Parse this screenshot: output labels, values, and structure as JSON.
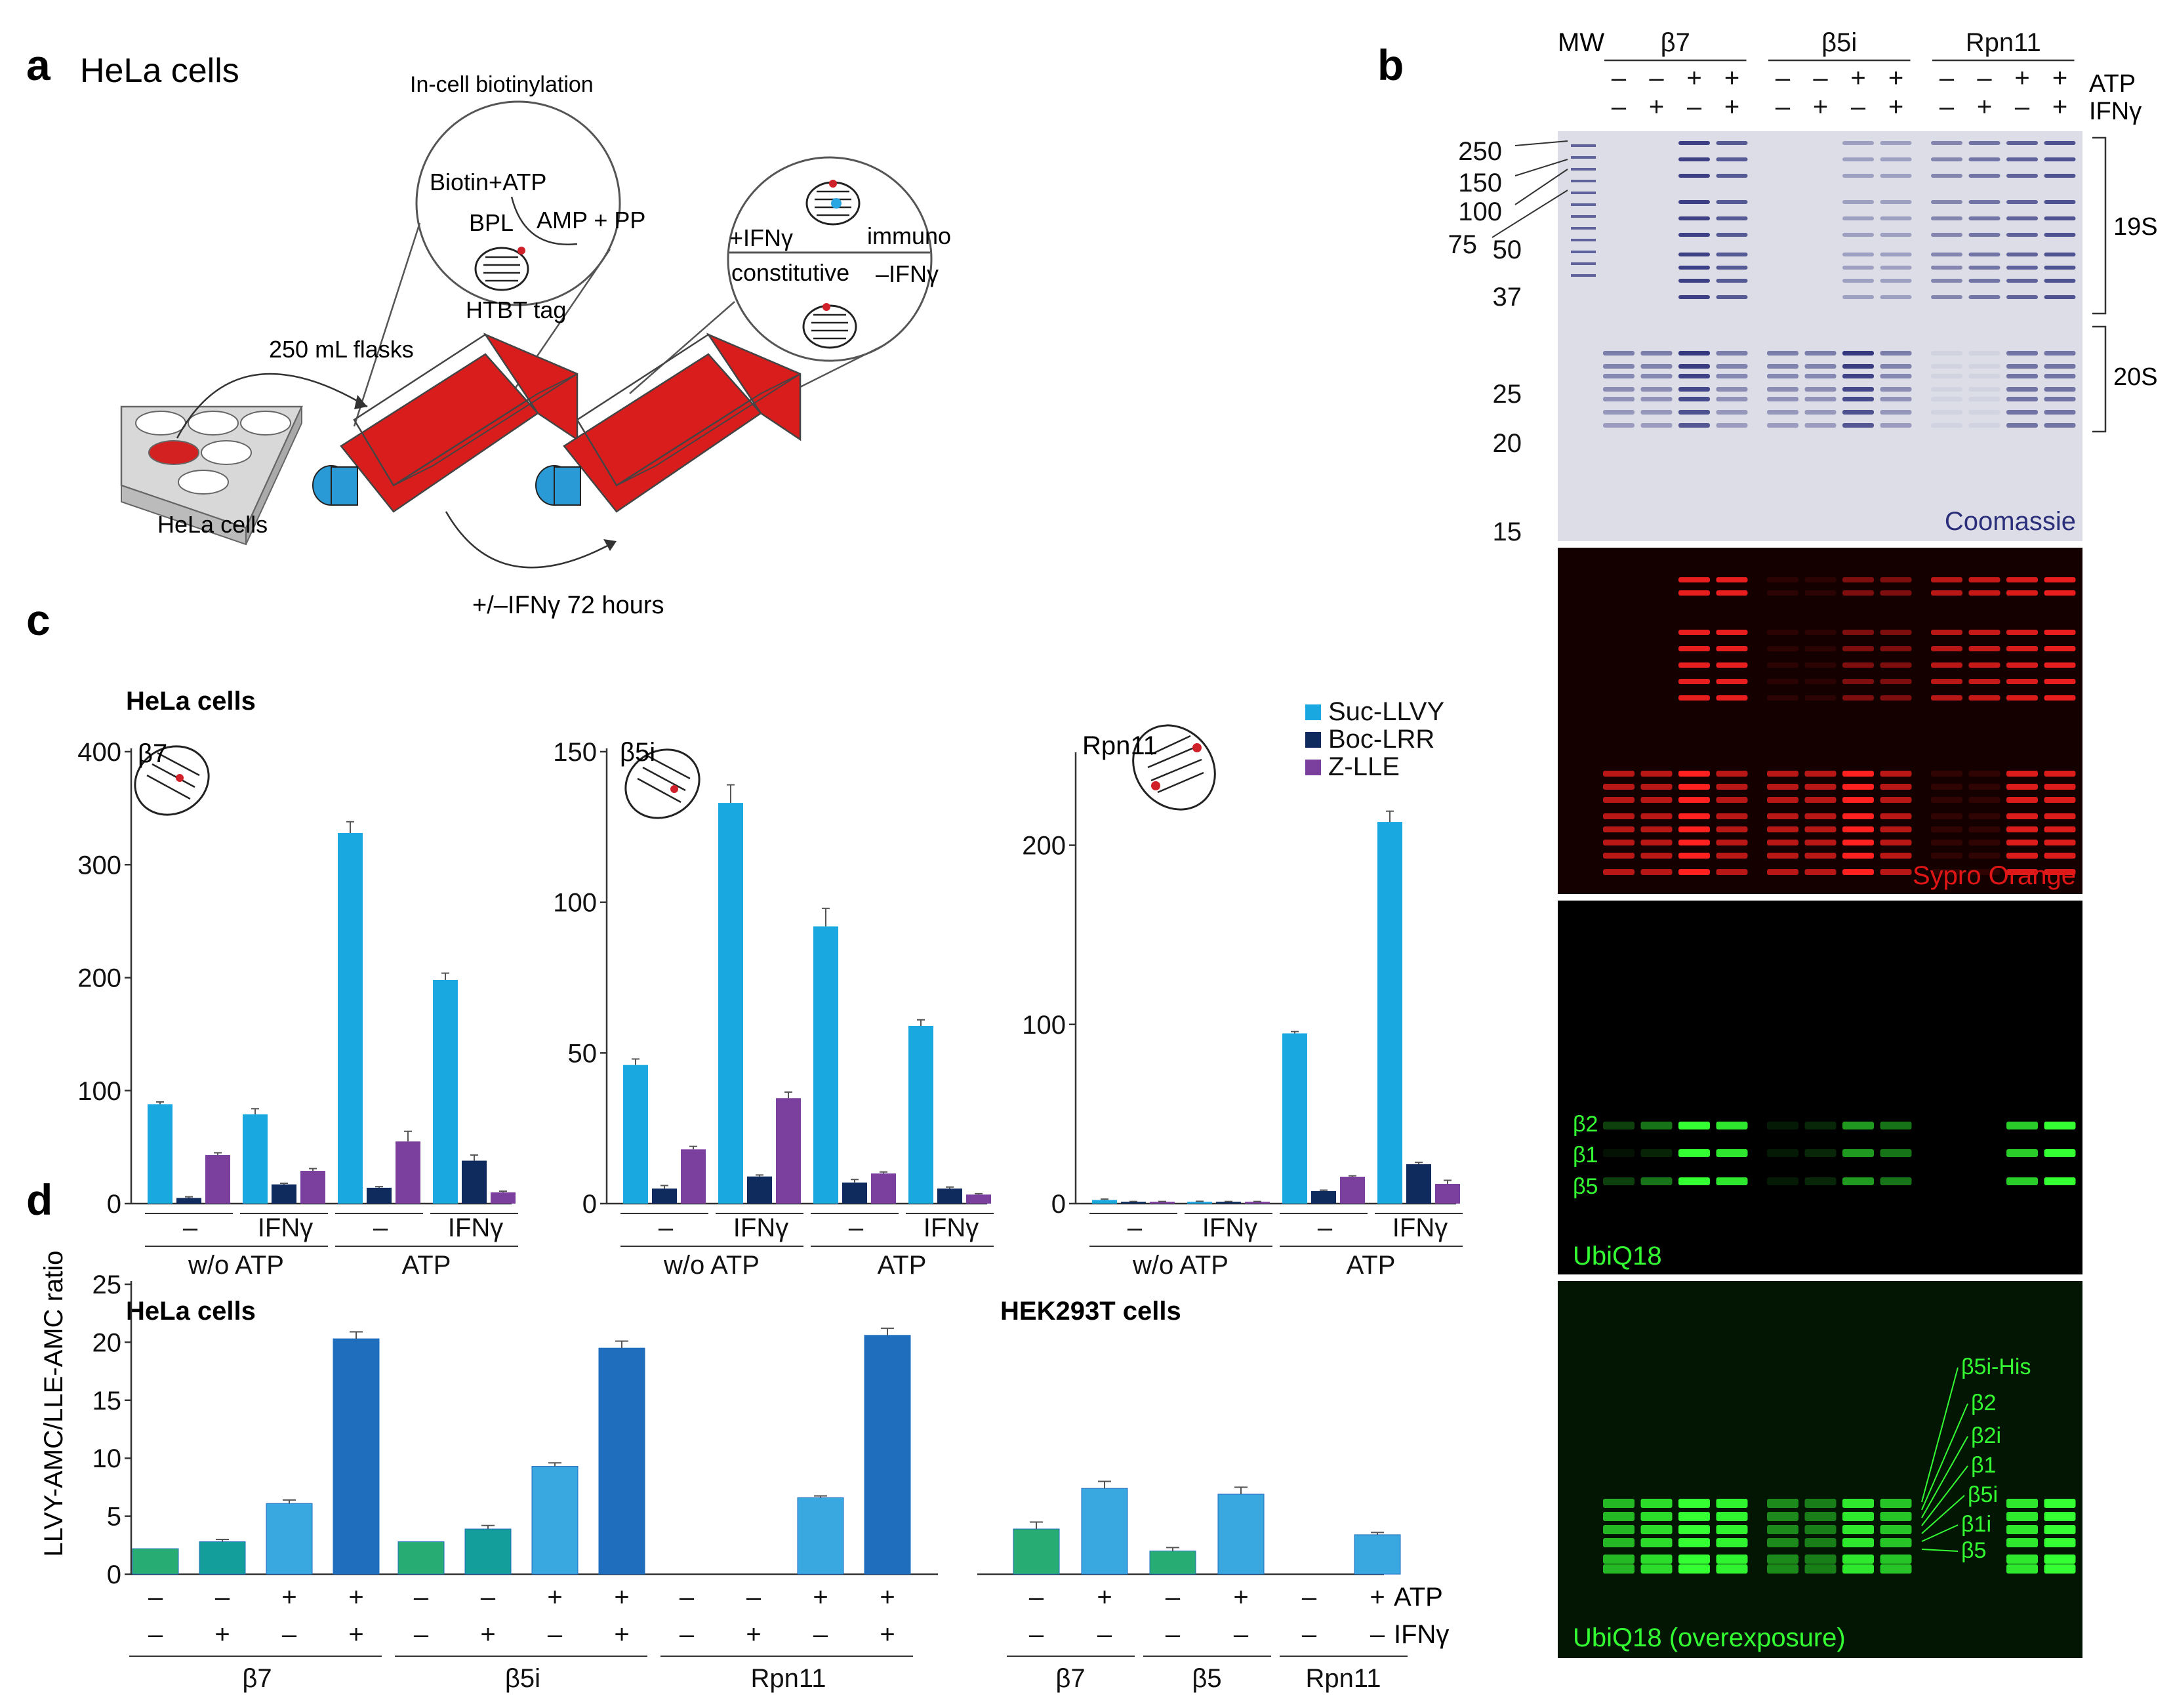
{
  "panel_a": {
    "letter": "a",
    "title": "HeLa cells",
    "labels": {
      "biotinylation": "In-cell biotinylation",
      "biotin_atp": "Biotin+ATP",
      "bpl": "BPL",
      "amp_pp": "AMP + PP",
      "htbt_tag": "HTBT tag",
      "flasks": "250 mL flasks",
      "hela_plate": "HeLa cells",
      "treatment": "+/–IFNγ 72 hours",
      "plus_ifn": "+IFNγ",
      "immuno": "immuno",
      "constitutive": "constitutive",
      "minus_ifn": "–IFNγ"
    }
  },
  "panel_b": {
    "letter": "b",
    "mw_label": "MW",
    "groups": [
      "β7",
      "β5i",
      "Rpn11"
    ],
    "atp_row": [
      "–",
      "–",
      "+",
      "+",
      "–",
      "–",
      "+",
      "+",
      "–",
      "–",
      "+",
      "+"
    ],
    "ifn_row": [
      "–",
      "+",
      "–",
      "+",
      "–",
      "+",
      "–",
      "+",
      "–",
      "+",
      "–",
      "+"
    ],
    "atp_label": "ATP",
    "ifn_label": "IFNγ",
    "mw_markers": [
      "250",
      "150",
      "100",
      "75",
      "50",
      "37",
      "25",
      "20",
      "15"
    ],
    "complex_labels": [
      "19S",
      "20S"
    ],
    "gel_labels": [
      "Coomassie",
      "Sypro Orange",
      "UbiQ18",
      "UbiQ18 (overexposure)"
    ],
    "ubiq_bands": [
      "β2",
      "β1",
      "β5"
    ],
    "overexp_bands": [
      "β5i-His",
      "β2",
      "β2i",
      "β1",
      "β5i",
      "β1i",
      "β5"
    ],
    "colors": {
      "coomassie": "#2b2f7a",
      "sypro": "#ff1a1a",
      "ubiq": "#33ff33"
    }
  },
  "panel_c": {
    "letter": "c",
    "title": "HeLa cells",
    "legend": [
      {
        "name": "Suc-LLVY",
        "color": "#1aa8e0"
      },
      {
        "name": "Boc-LRR",
        "color": "#0f2a5c"
      },
      {
        "name": "Z-LLE",
        "color": "#7b3f9e"
      }
    ],
    "group_labels": [
      "–",
      "IFNγ",
      "–",
      "IFNγ"
    ],
    "atp_labels": [
      "w/o ATP",
      "ATP"
    ]
  },
  "panel_d": {
    "letter": "d",
    "ylabel": "LLVY-AMC/LLE-AMC ratio",
    "hela_title": "HeLa cells",
    "hek_title": "HEK293T cells",
    "atp_label": "ATP",
    "ifn_label": "IFNγ",
    "hela_groups": [
      "β7",
      "β5i",
      "Rpn11"
    ],
    "hek_groups": [
      "β7",
      "β5",
      "Rpn11"
    ],
    "hela_atp": [
      "–",
      "–",
      "+",
      "+",
      "–",
      "–",
      "+",
      "+",
      "–",
      "–",
      "+",
      "+"
    ],
    "hela_ifn": [
      "–",
      "+",
      "–",
      "+",
      "–",
      "+",
      "–",
      "+",
      "–",
      "+",
      "–",
      "+"
    ],
    "hek_atp": [
      "–",
      "+",
      "–",
      "+",
      "–",
      "+"
    ],
    "hek_ifn": [
      "–",
      "–",
      "–",
      "–",
      "–",
      "–"
    ]
  },
  "chart_data": [
    {
      "type": "bar",
      "title": "β7",
      "ylim": [
        0,
        400
      ],
      "yticks": [
        0,
        100,
        200,
        300,
        400
      ],
      "categories": [
        "w/o ATP –",
        "w/o ATP IFNγ",
        "ATP –",
        "ATP IFNγ"
      ],
      "series": [
        {
          "name": "Suc-LLVY",
          "values": [
            88,
            79,
            328,
            198
          ],
          "errors": [
            2,
            5,
            10,
            6
          ]
        },
        {
          "name": "Boc-LRR",
          "values": [
            5,
            17,
            14,
            38
          ],
          "errors": [
            1,
            1,
            1,
            5
          ]
        },
        {
          "name": "Z-LLE",
          "values": [
            43,
            29,
            55,
            10
          ],
          "errors": [
            2,
            2,
            9,
            1
          ]
        }
      ]
    },
    {
      "type": "bar",
      "title": "β5i",
      "ylim": [
        0,
        150
      ],
      "yticks": [
        0,
        50,
        100,
        150
      ],
      "categories": [
        "w/o ATP –",
        "w/o ATP IFNγ",
        "ATP –",
        "ATP IFNγ"
      ],
      "series": [
        {
          "name": "Suc-LLVY",
          "values": [
            46,
            133,
            92,
            59
          ],
          "errors": [
            2,
            6,
            6,
            2
          ]
        },
        {
          "name": "Boc-LRR",
          "values": [
            5,
            9,
            7,
            5
          ],
          "errors": [
            1,
            0.5,
            1,
            0.5
          ]
        },
        {
          "name": "Z-LLE",
          "values": [
            18,
            35,
            10,
            3
          ],
          "errors": [
            1,
            2,
            0.5,
            0.3
          ]
        }
      ]
    },
    {
      "type": "bar",
      "title": "Rpn11",
      "ylim": [
        0,
        250
      ],
      "yticks": [
        0,
        100,
        200
      ],
      "categories": [
        "w/o ATP –",
        "w/o ATP IFNγ",
        "ATP –",
        "ATP IFNγ"
      ],
      "series": [
        {
          "name": "Suc-LLVY",
          "values": [
            2,
            1,
            95,
            213
          ],
          "errors": [
            0.5,
            0.3,
            1,
            6
          ]
        },
        {
          "name": "Boc-LRR",
          "values": [
            1,
            1,
            7,
            22
          ],
          "errors": [
            0.2,
            0.2,
            0.5,
            1
          ]
        },
        {
          "name": "Z-LLE",
          "values": [
            1,
            1,
            15,
            11
          ],
          "errors": [
            0.2,
            0.2,
            0.5,
            2
          ]
        }
      ]
    },
    {
      "type": "bar",
      "title": "HeLa cells",
      "ylabel": "LLVY-AMC/LLE-AMC ratio",
      "ylim": [
        0,
        25
      ],
      "yticks": [
        0,
        5,
        10,
        15,
        20,
        25
      ],
      "categories": [
        "β7 –/–",
        "β7 –/+",
        "β7 +/–",
        "β7 +/+",
        "β5i –/–",
        "β5i –/+",
        "β5i +/–",
        "β5i +/+",
        "Rpn11 –/–",
        "Rpn11 –/+",
        "Rpn11 +/–",
        "Rpn11 +/+"
      ],
      "values": [
        2.2,
        2.8,
        6.1,
        20.3,
        2.8,
        3.9,
        9.3,
        19.5,
        0,
        0,
        6.6,
        20.6
      ],
      "errors": [
        0,
        0.2,
        0.3,
        0.6,
        0,
        0.3,
        0.3,
        0.6,
        0,
        0,
        0.15,
        0.6
      ],
      "colors": [
        "#27ad73",
        "#139e9b",
        "#3aa8e0",
        "#1f6ebd",
        "#27ad73",
        "#139e9b",
        "#3aa8e0",
        "#1f6ebd",
        "#27ad73",
        "#139e9b",
        "#3aa8e0",
        "#1f6ebd"
      ]
    },
    {
      "type": "bar",
      "title": "HEK293T cells",
      "ylim": [
        0,
        25
      ],
      "categories": [
        "β7 –",
        "β7 +",
        "β5 –",
        "β5 +",
        "Rpn11 –",
        "Rpn11 +"
      ],
      "values": [
        3.9,
        7.4,
        2.0,
        6.9,
        0,
        3.4
      ],
      "errors": [
        0.6,
        0.6,
        0.3,
        0.6,
        0,
        0.2
      ],
      "colors": [
        "#27ad73",
        "#3aa8e0",
        "#27ad73",
        "#3aa8e0",
        "#27ad73",
        "#3aa8e0"
      ]
    }
  ]
}
